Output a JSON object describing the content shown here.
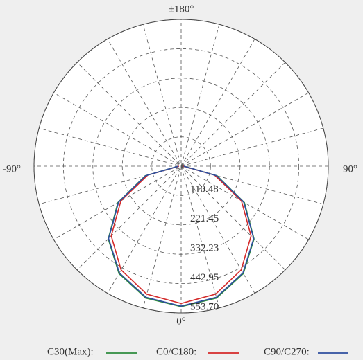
{
  "chart_data": {
    "type": "polar",
    "rlim": [
      0,
      553.7
    ],
    "rticks": [
      110.48,
      221.45,
      332.23,
      442.95,
      {
        "value": 553.7,
        "label": "553.70"
      }
    ],
    "theta_ticks": [
      {
        "value": 180,
        "label": "±180°"
      },
      {
        "value": -90,
        "label": "-90°"
      },
      {
        "value": 90,
        "label": "90°"
      },
      {
        "value": 0,
        "label": "0°"
      }
    ],
    "theta_grid": [
      0,
      15,
      30,
      45,
      60,
      75,
      90,
      105,
      120,
      135,
      150,
      165
    ],
    "x": [
      -90,
      -75,
      -60,
      -45,
      -30,
      -15,
      0,
      15,
      30,
      45,
      60,
      75,
      90
    ],
    "series": [
      {
        "name": "C30(Max):",
        "color": "#2e8b3e",
        "values": [
          10,
          140,
          275,
          388,
          468,
          515,
          530,
          515,
          468,
          388,
          275,
          140,
          10
        ]
      },
      {
        "name": "C0/C180:",
        "color": "#d42a2a",
        "values": [
          8,
          130,
          262,
          372,
          452,
          500,
          518,
          500,
          452,
          372,
          262,
          130,
          8
        ]
      },
      {
        "name": "C90/C270:",
        "color": "#2f4f9f",
        "values": [
          10,
          138,
          272,
          386,
          465,
          512,
          528,
          512,
          465,
          386,
          272,
          138,
          10
        ]
      }
    ]
  }
}
